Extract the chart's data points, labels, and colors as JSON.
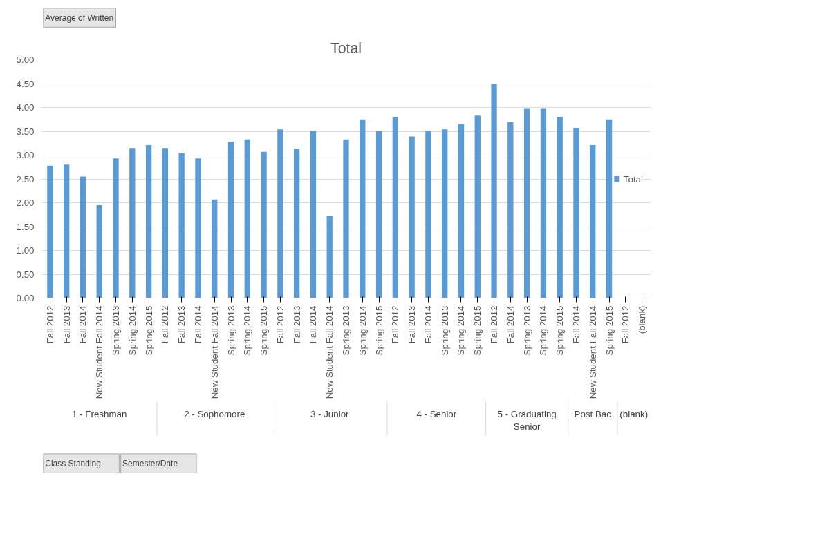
{
  "chart_data": {
    "type": "bar",
    "title": "Total",
    "categories": [
      "Fall 2012",
      "Fall 2013",
      "Fall 2014",
      "New Student Fall 2014",
      "Spring 2013",
      "Spring 2014",
      "Spring 2015",
      "Fall 2012",
      "Fall 2013",
      "Fall 2014",
      "New Student Fall 2014",
      "Spring 2013",
      "Spring 2014",
      "Spring 2015",
      "Fall 2012",
      "Fall 2013",
      "Fall 2014",
      "New Student Fall 2014",
      "Spring 2013",
      "Spring 2014",
      "Spring 2015",
      "Fall 2012",
      "Fall 2013",
      "Fall 2014",
      "Spring 2013",
      "Spring 2014",
      "Spring 2015",
      "Fall 2012",
      "Fall 2014",
      "Spring 2013",
      "Spring 2014",
      "Spring 2015",
      "Fall 2014",
      "New Student Fall 2014",
      "Spring 2015",
      "Fall 2012",
      "(blank)"
    ],
    "series": [
      {
        "name": "Total",
        "color": "#5b9bd5",
        "values": [
          2.78,
          2.8,
          2.55,
          1.95,
          2.93,
          3.15,
          3.21,
          3.15,
          3.04,
          2.93,
          2.07,
          3.28,
          3.33,
          3.07,
          3.54,
          3.13,
          3.51,
          1.72,
          3.33,
          3.75,
          3.51,
          3.8,
          3.39,
          3.51,
          3.54,
          3.65,
          3.83,
          4.49,
          3.69,
          3.97,
          3.97,
          3.8,
          3.57,
          3.21,
          3.75,
          null,
          null
        ]
      }
    ],
    "ylim": [
      0,
      5
    ],
    "yticks": [
      {
        "value": 0,
        "label": "0.00"
      },
      {
        "value": 0.5,
        "label": "0.50"
      },
      {
        "value": 1,
        "label": "1.00"
      },
      {
        "value": 1.5,
        "label": "1.50"
      },
      {
        "value": 2,
        "label": "2.00"
      },
      {
        "value": 2.5,
        "label": "2.50"
      },
      {
        "value": 3,
        "label": "3.00"
      },
      {
        "value": 3.5,
        "label": "3.50"
      },
      {
        "value": 4,
        "label": "4.00"
      },
      {
        "value": 4.5,
        "label": "4.50"
      },
      {
        "value": 5,
        "label": "5.00"
      }
    ],
    "grid": "y",
    "legend": "right",
    "annotations": [
      "1 - Freshman",
      "2 - Sophomore",
      "3 - Junior",
      "4 - Senior",
      "5 - Graduating Senior",
      "Post Bac",
      "(blank)",
      "Average of Written",
      "Class Standing",
      "Semester/Date"
    ]
  }
}
